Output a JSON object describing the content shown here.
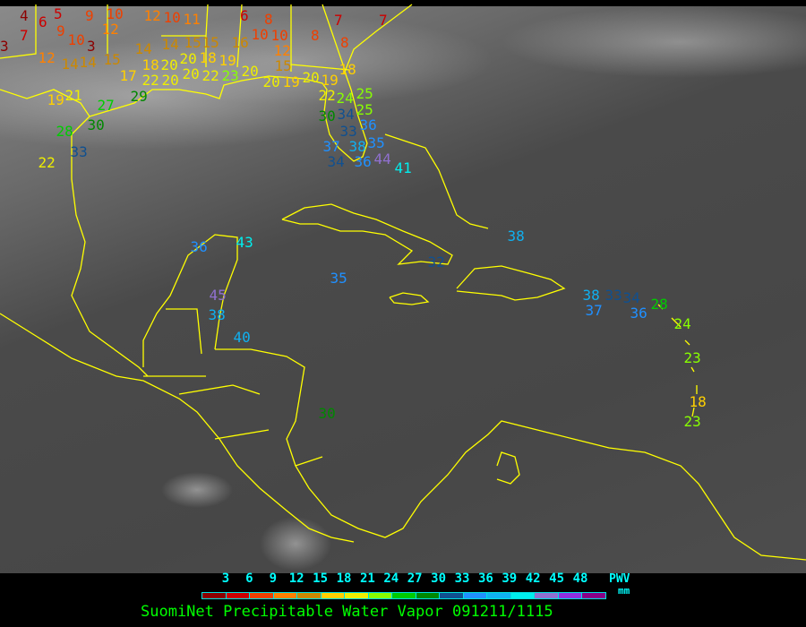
{
  "title": "SuomiNet Precipitable Water Vapor 091211/1115",
  "legend": {
    "unit_label": "PWV",
    "unit": "mm",
    "ticks": [
      "3",
      "6",
      "9",
      "12",
      "15",
      "18",
      "21",
      "24",
      "27",
      "30",
      "33",
      "36",
      "39",
      "42",
      "45",
      "48"
    ],
    "colors": [
      "#8c0000",
      "#cc0000",
      "#ee4000",
      "#ff8000",
      "#cc8800",
      "#ffd000",
      "#eeee00",
      "#88ff00",
      "#00cc00",
      "#008800",
      "#105090",
      "#2090ff",
      "#10b0f0",
      "#00eeee",
      "#9070d0",
      "#9030e0",
      "#880088"
    ]
  },
  "stations": [
    4,
    6,
    3,
    7,
    5,
    9,
    10,
    9,
    10,
    12,
    3,
    12,
    14,
    14,
    15,
    14,
    14,
    15,
    20,
    18,
    12,
    10,
    11,
    18,
    20,
    20,
    17,
    22,
    20,
    19,
    15,
    16,
    6,
    8,
    10,
    10,
    12,
    15,
    8,
    7,
    7,
    8,
    18,
    22,
    23,
    20,
    20,
    19,
    20,
    19,
    22,
    24,
    25,
    25,
    34,
    30,
    33,
    36,
    38,
    35,
    37,
    34,
    36,
    44,
    41,
    19,
    21,
    27,
    29,
    28,
    30,
    33,
    22,
    36,
    43,
    45,
    38,
    40,
    35,
    32,
    30,
    38,
    38,
    33,
    34,
    37,
    36,
    28,
    24,
    23,
    18,
    23
  ],
  "coastline_color": "#ffff00"
}
